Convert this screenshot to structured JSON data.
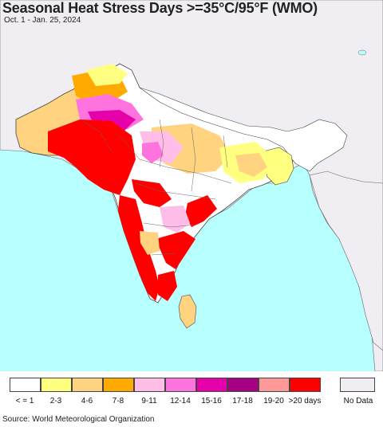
{
  "header": {
    "title": "Seasonal Heat Stress Days >=35°C/95°F (WMO)",
    "date_range": "Oct. 1 - Jan. 25, 2024"
  },
  "map": {
    "ocean_color": "#b8ffff",
    "land_color": "#f2eef2",
    "boundary_color": "#555555"
  },
  "legend": {
    "items": [
      {
        "label": "< = 1",
        "color": "#ffffff"
      },
      {
        "label": "2-3",
        "color": "#ffff80"
      },
      {
        "label": "4-6",
        "color": "#ffd37f"
      },
      {
        "label": "7-8",
        "color": "#ffaa00"
      },
      {
        "label": "9-11",
        "color": "#ffbee8"
      },
      {
        "label": "12-14",
        "color": "#ff73df"
      },
      {
        "label": "15-16",
        "color": "#e600a9"
      },
      {
        "label": "17-18",
        "color": "#a80084"
      },
      {
        "label": "19-20",
        "color": "#ff9999"
      },
      {
        "label": ">20 days",
        "color": "#ff0000"
      }
    ],
    "no_data": {
      "label": "No Data",
      "color": "#f0eef2"
    }
  },
  "footer": {
    "source": "Source: World Meteorological Organization"
  }
}
